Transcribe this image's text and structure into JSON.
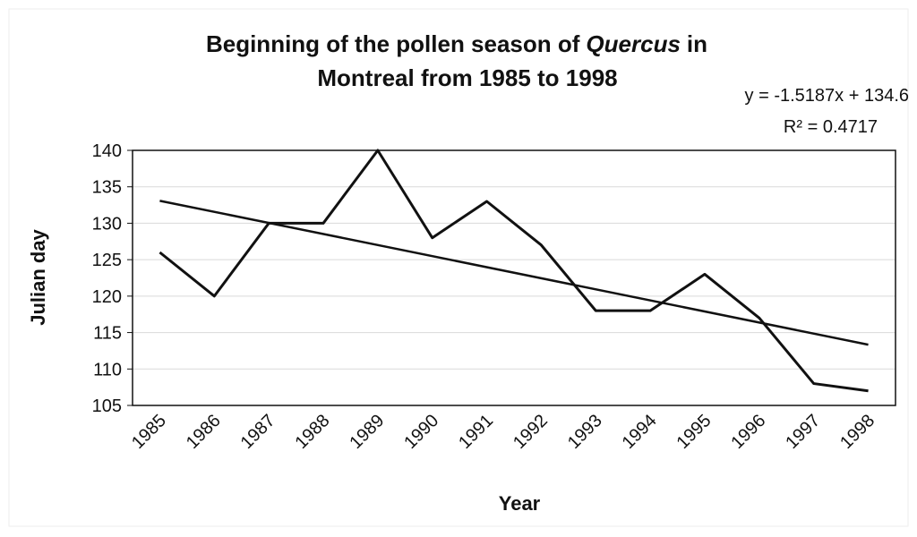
{
  "chart_data": {
    "type": "line",
    "title": {
      "line1": [
        "Beginning of the pollen season of",
        "Quercus",
        "in"
      ],
      "line2": "Montreal from 1985 to 1998"
    },
    "x_label": "Year",
    "y_label": "Julian day",
    "categories": [
      "1985",
      "1986",
      "1987",
      "1988",
      "1989",
      "1990",
      "1991",
      "1992",
      "1993",
      "1994",
      "1995",
      "1996",
      "1997",
      "1998"
    ],
    "series": [
      {
        "color": "#111111",
        "values": [
          126,
          120,
          130,
          130,
          140,
          128,
          133,
          127,
          118,
          118,
          123,
          117,
          108,
          107
        ]
      }
    ],
    "trendline": {
      "slope": -1.5187,
      "intercept": 134.6,
      "color": "#111111",
      "equation_label": "y = -1.5187x + 134.6",
      "r2_label": "R² = 0.4717"
    },
    "ylim": [
      105,
      140
    ],
    "yticks": [
      105,
      110,
      115,
      120,
      125,
      130,
      135,
      140
    ],
    "grid": true
  }
}
